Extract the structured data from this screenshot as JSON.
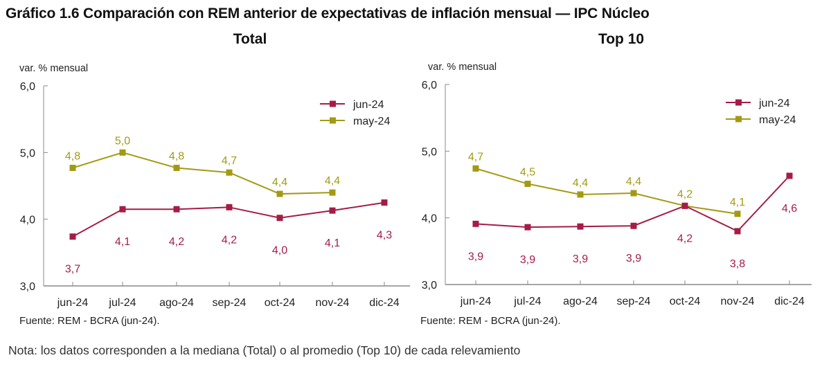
{
  "title": "Gráfico 1.6 Comparación con REM anterior de expectativas de inflación mensual — IPC Núcleo",
  "note": "Nota: los datos corresponden a la mediana (Total) o al promedio (Top 10) de cada relevamiento",
  "colors": {
    "jun-24": "#A51C46",
    "may-24": "#A39A14"
  },
  "chart_data": [
    {
      "type": "line",
      "title": "Total",
      "ylabel": "var. % mensual",
      "xlabel": "",
      "source": "Fuente: REM - BCRA (jun-24).",
      "categories": [
        "jun-24",
        "jul-24",
        "ago-24",
        "sep-24",
        "oct-24",
        "nov-24",
        "dic-24"
      ],
      "ylim": [
        3.0,
        6.0
      ],
      "yticks": [
        "3,0",
        "4,0",
        "5,0",
        "6,0"
      ],
      "ytick_values": [
        3.0,
        4.0,
        5.0,
        6.0
      ],
      "grid": false,
      "legend": "top-right",
      "series": [
        {
          "name": "jun-24",
          "values": [
            3.74,
            4.15,
            4.15,
            4.18,
            4.02,
            4.13,
            4.25
          ],
          "labels": [
            "3,7",
            "4,1",
            "4,2",
            "4,2",
            "4,0",
            "4,1",
            "4,3"
          ],
          "label_pos": [
            "below",
            "below",
            "below",
            "below",
            "below",
            "below",
            "below"
          ]
        },
        {
          "name": "may-24",
          "values": [
            4.77,
            5.0,
            4.77,
            4.7,
            4.38,
            4.4,
            null
          ],
          "labels": [
            "4,8",
            "5,0",
            "4,8",
            "4,7",
            "4,4",
            "4,4",
            null
          ],
          "label_pos": [
            "above",
            "above",
            "above",
            "above",
            "above",
            "above",
            null
          ]
        }
      ]
    },
    {
      "type": "line",
      "title": "Top 10",
      "ylabel": "var. % mensual",
      "xlabel": "",
      "source": "Fuente: REM - BCRA (jun-24).",
      "categories": [
        "jun-24",
        "jul-24",
        "ago-24",
        "sep-24",
        "oct-24",
        "nov-24",
        "dic-24"
      ],
      "ylim": [
        3.0,
        6.0
      ],
      "yticks": [
        "3,0",
        "4,0",
        "5,0",
        "6,0"
      ],
      "ytick_values": [
        3.0,
        4.0,
        5.0,
        6.0
      ],
      "grid": false,
      "legend": "top-right",
      "series": [
        {
          "name": "jun-24",
          "values": [
            3.91,
            3.86,
            3.87,
            3.88,
            4.18,
            3.8,
            4.63
          ],
          "labels": [
            "3,9",
            "3,9",
            "3,9",
            "3,9",
            "4,2",
            "3,8",
            "4,6"
          ],
          "label_pos": [
            "below",
            "below",
            "below",
            "below",
            "below",
            "below",
            "below"
          ]
        },
        {
          "name": "may-24",
          "values": [
            4.74,
            4.51,
            4.35,
            4.37,
            4.18,
            4.06,
            null
          ],
          "labels": [
            "4,7",
            "4,5",
            "4,4",
            "4,4",
            "4,2",
            "4,1",
            null
          ],
          "label_pos": [
            "above",
            "above",
            "above",
            "above",
            "above",
            "above",
            null
          ]
        }
      ]
    }
  ]
}
